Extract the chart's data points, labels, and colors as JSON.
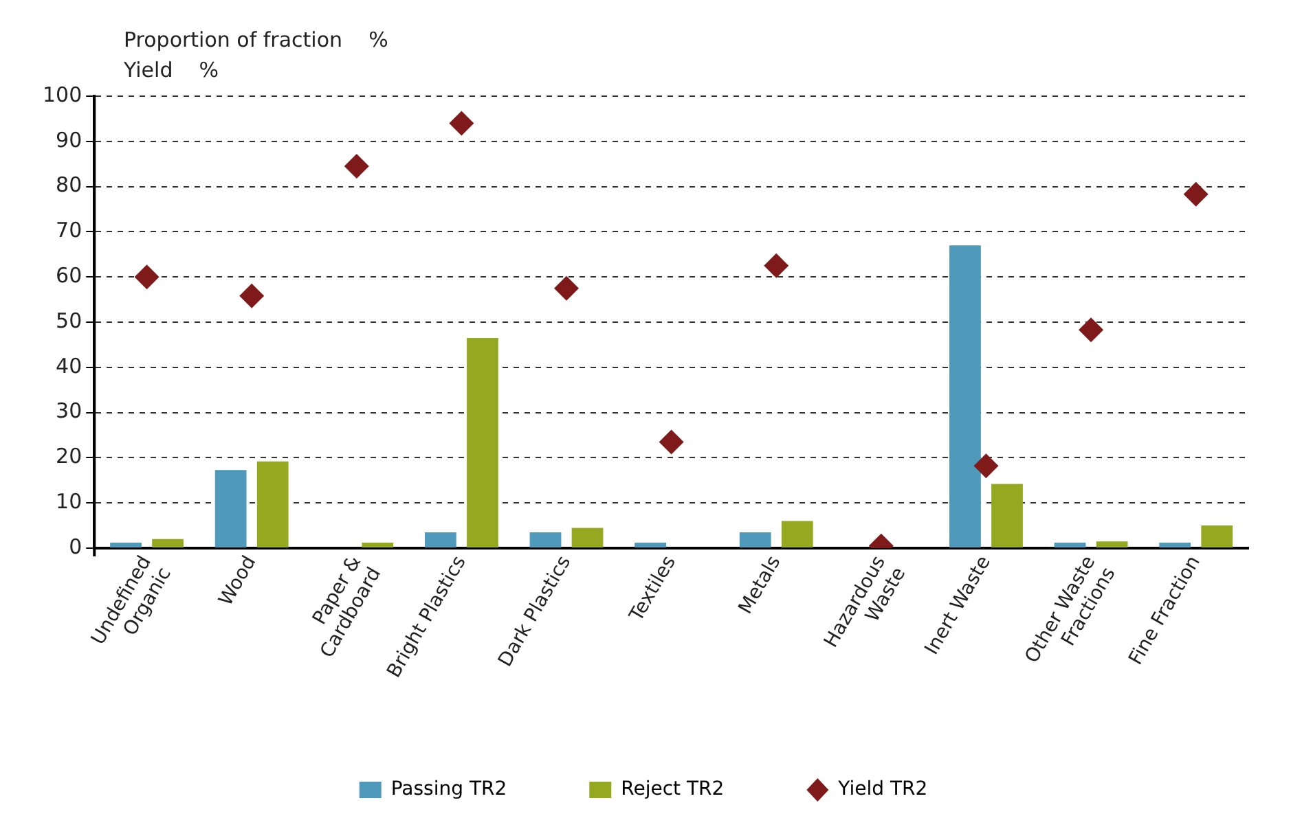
{
  "chart_data": {
    "type": "bar",
    "ylabel": "Proportion of fraction    %",
    "annotations": [
      "Yield    %"
    ],
    "categories": [
      "Undefined\nOrganic",
      "Wood",
      "Paper &\nCardboard",
      "Bright Plastics",
      "Dark Plastics",
      "Textiles",
      "Metals",
      "Hazardous\nWaste",
      "Inert Waste",
      "Other Waste\nFractions",
      "Fine Fraction"
    ],
    "series": [
      {
        "name": "Passing TR2",
        "color": "#4f9aba",
        "values": [
          1.2,
          17.3,
          0,
          3.5,
          3.5,
          1.2,
          3.5,
          0,
          67,
          1.2,
          1.2
        ]
      },
      {
        "name": "Reject TR2",
        "color": "#95a920",
        "values": [
          2,
          19.2,
          1.2,
          46.5,
          4.5,
          0,
          6,
          0,
          14.2,
          1.5,
          5
        ]
      },
      {
        "name": "Yield TR2",
        "type": "scatter",
        "color": "#7f1a1a",
        "marker": "diamond",
        "values": [
          60,
          55.8,
          84.5,
          94,
          57.5,
          23.5,
          62.5,
          0.5,
          18.2,
          48.3,
          78.3
        ]
      }
    ],
    "ylim": [
      0,
      100
    ],
    "yticks": [
      0,
      10,
      20,
      30,
      40,
      50,
      60,
      70,
      80,
      90,
      100
    ],
    "grid": "y",
    "legend": "bottom"
  }
}
